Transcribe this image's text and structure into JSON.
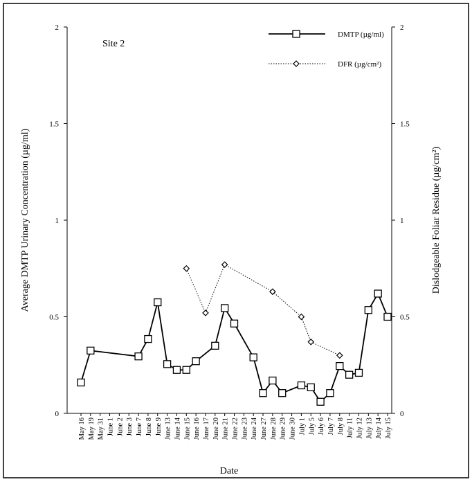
{
  "chart_data": {
    "type": "line",
    "y_label": "Average DMTP Urinary Concentration (µg/ml)",
    "y2_label": "Dislodgeable Foliar Residue (µg/cm²)",
    "x_label": "Date",
    "annotation": "Site 2",
    "categories": [
      "May 16",
      "May 19",
      "May 31",
      "June 1",
      "June 2",
      "June 3",
      "June 7",
      "June 8",
      "June 9",
      "June 13",
      "June 14",
      "June 15",
      "June 16",
      "June 17",
      "June 20",
      "June 21",
      "June 22",
      "June 23",
      "June 24",
      "June 27",
      "June 28",
      "June 29",
      "June 30",
      "July 1",
      "July 5",
      "July 6",
      "July 7",
      "July 8",
      "July 11",
      "July 12",
      "July 13",
      "July 14",
      "July 15"
    ],
    "ylim": [
      0,
      2
    ],
    "yticks": [
      0,
      0.5,
      1,
      1.5,
      2
    ],
    "y2lim": [
      0,
      2
    ],
    "y2ticks": [
      0,
      0.5,
      1,
      1.5,
      2
    ],
    "series": [
      {
        "name": "DMTP  (µg/ml)",
        "color": "#000000",
        "marker": "square",
        "dash": "solid",
        "x": [
          "May 16",
          "May 19",
          "June 7",
          "June 8",
          "June 9",
          "June 13",
          "June 14",
          "June 15",
          "June 16",
          "June 20",
          "June 21",
          "June 22",
          "June 24",
          "June 27",
          "June 28",
          "June 29",
          "July 1",
          "July 5",
          "July 6",
          "July 7",
          "July 8",
          "July 11",
          "July 12",
          "July 13",
          "July 14",
          "July 15"
        ],
        "values": [
          0.16,
          0.325,
          0.295,
          0.385,
          0.575,
          0.255,
          0.225,
          0.225,
          0.27,
          0.35,
          0.545,
          0.465,
          0.29,
          0.105,
          0.17,
          0.105,
          0.145,
          0.135,
          0.06,
          0.105,
          0.245,
          0.2,
          0.21,
          0.535,
          0.62,
          0.5
        ]
      },
      {
        "name": "DFR (µg/cm²)",
        "color": "#000000",
        "marker": "diamond",
        "dash": "dotted",
        "axis": "y2",
        "x": [
          "June 15",
          "June 17",
          "June 21",
          "June 28",
          "July 1",
          "July 5",
          "July 8"
        ],
        "values": [
          0.75,
          0.52,
          0.77,
          0.63,
          0.5,
          0.37,
          0.3
        ]
      }
    ]
  }
}
